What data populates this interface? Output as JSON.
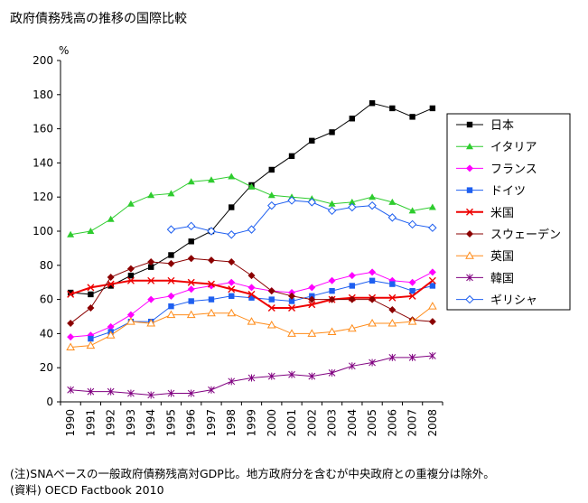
{
  "colors": {
    "日本": "#000000",
    "イタリア": "#2ecc2e",
    "フランス": "#ff00ff",
    "ドイツ": "#1e5ff0",
    "米国": "#ee0000",
    "スウェーデン": "#8b0000",
    "英国": "#ff8c1a",
    "韓国": "#800080",
    "ギリシャ": "#1e5ff0"
  },
  "chart_data": {
    "type": "line",
    "title": "政府債務残高の推移の国際比較",
    "ylabel": "%",
    "xlabel": "",
    "ylim": [
      0,
      200
    ],
    "yticks": [
      0,
      20,
      40,
      60,
      80,
      100,
      120,
      140,
      160,
      180,
      200
    ],
    "grid": false,
    "legend_position": "right",
    "x": [
      "1990",
      "1991",
      "1992",
      "1993",
      "1994",
      "1995",
      "1996",
      "1997",
      "1998",
      "1999",
      "2000",
      "2001",
      "2002",
      "2003",
      "2004",
      "2005",
      "2006",
      "2007",
      "2008"
    ],
    "series": [
      {
        "name": "日本",
        "marker": "square-filled",
        "values": [
          64,
          63,
          68,
          74,
          79,
          86,
          94,
          100,
          114,
          127,
          136,
          144,
          153,
          158,
          166,
          175,
          172,
          167,
          172
        ]
      },
      {
        "name": "イタリア",
        "marker": "triangle-filled",
        "values": [
          98,
          100,
          107,
          116,
          121,
          122,
          129,
          130,
          132,
          126,
          121,
          120,
          119,
          116,
          117,
          120,
          117,
          112,
          114
        ]
      },
      {
        "name": "フランス",
        "marker": "diamond-filled",
        "values": [
          38,
          39,
          44,
          51,
          60,
          62,
          66,
          68,
          70,
          67,
          65,
          64,
          67,
          71,
          74,
          76,
          71,
          70,
          76
        ]
      },
      {
        "name": "ドイツ",
        "marker": "square-filled",
        "values": [
          null,
          37,
          41,
          47,
          47,
          56,
          59,
          60,
          62,
          61,
          60,
          59,
          62,
          65,
          68,
          71,
          69,
          65,
          68
        ]
      },
      {
        "name": "米国",
        "marker": "x",
        "values": [
          63,
          67,
          69,
          71,
          71,
          71,
          70,
          69,
          66,
          63,
          55,
          55,
          57,
          60,
          61,
          61,
          61,
          62,
          71
        ]
      },
      {
        "name": "スウェーデン",
        "marker": "diamond-filled",
        "values": [
          46,
          55,
          73,
          78,
          82,
          81,
          84,
          83,
          82,
          74,
          65,
          62,
          60,
          60,
          60,
          60,
          54,
          48,
          47
        ]
      },
      {
        "name": "英国",
        "marker": "triangle-open",
        "values": [
          32,
          33,
          39,
          47,
          46,
          51,
          51,
          52,
          52,
          47,
          45,
          40,
          40,
          41,
          43,
          46,
          46,
          47,
          56
        ]
      },
      {
        "name": "韓国",
        "marker": "asterisk",
        "values": [
          7,
          6,
          6,
          5,
          4,
          5,
          5,
          7,
          12,
          14,
          15,
          16,
          15,
          17,
          21,
          23,
          26,
          26,
          27
        ]
      },
      {
        "name": "ギリシャ",
        "marker": "diamond-open",
        "values": [
          null,
          null,
          null,
          null,
          null,
          101,
          103,
          100,
          98,
          101,
          115,
          118,
          117,
          112,
          114,
          115,
          108,
          104,
          102
        ]
      }
    ]
  },
  "note": "(注)SNAベースの一般政府債務残高対GDP比。地方政府分を含むが中央政府との重複分は除外。",
  "source": "(資料) OECD Factbook 2010"
}
